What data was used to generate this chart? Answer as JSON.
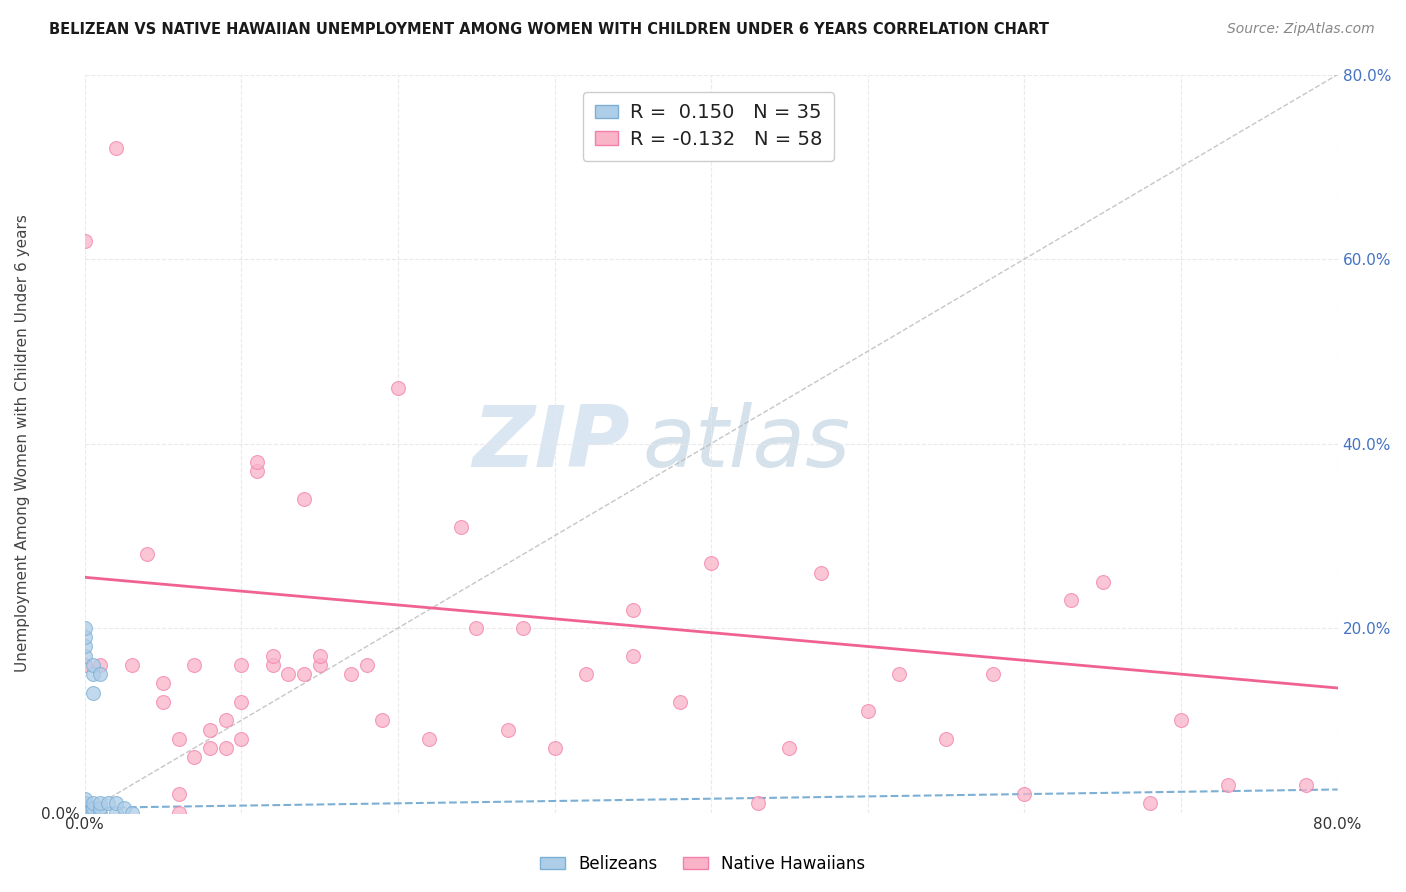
{
  "title": "BELIZEAN VS NATIVE HAWAIIAN UNEMPLOYMENT AMONG WOMEN WITH CHILDREN UNDER 6 YEARS CORRELATION CHART",
  "source": "Source: ZipAtlas.com",
  "ylabel": "Unemployment Among Women with Children Under 6 years",
  "xlim": [
    0.0,
    0.8
  ],
  "ylim": [
    0.0,
    0.8
  ],
  "belizean_R": 0.15,
  "belizean_N": 35,
  "hawaiian_R": -0.132,
  "hawaiian_N": 58,
  "belizean_color": "#aecde8",
  "hawaiian_color": "#f9b4c8",
  "belizean_edge_color": "#7bafd4",
  "hawaiian_edge_color": "#f47fab",
  "belizean_line_color": "#7bafd4",
  "hawaiian_line_color": "#f06292",
  "diagonal_color": "#b8b8b8",
  "belizean_points_x": [
    0.0,
    0.0,
    0.0,
    0.0,
    0.0,
    0.0,
    0.0,
    0.0,
    0.0,
    0.0,
    0.0,
    0.0,
    0.0,
    0.0,
    0.0,
    0.0,
    0.0,
    0.0,
    0.0,
    0.0,
    0.005,
    0.005,
    0.005,
    0.005,
    0.005,
    0.005,
    0.01,
    0.01,
    0.01,
    0.01,
    0.015,
    0.02,
    0.02,
    0.025,
    0.03
  ],
  "belizean_points_y": [
    0.0,
    0.0,
    0.0,
    0.0,
    0.0,
    0.0,
    0.0,
    0.005,
    0.005,
    0.005,
    0.01,
    0.01,
    0.015,
    0.17,
    0.18,
    0.19,
    0.2,
    0.0,
    0.0,
    0.0,
    0.0,
    0.005,
    0.01,
    0.13,
    0.15,
    0.16,
    0.0,
    0.005,
    0.01,
    0.15,
    0.01,
    0.0,
    0.01,
    0.005,
    0.0
  ],
  "hawaiian_points_x": [
    0.0,
    0.0,
    0.01,
    0.02,
    0.03,
    0.04,
    0.05,
    0.05,
    0.06,
    0.06,
    0.06,
    0.07,
    0.07,
    0.08,
    0.08,
    0.09,
    0.09,
    0.1,
    0.1,
    0.1,
    0.11,
    0.11,
    0.12,
    0.12,
    0.13,
    0.14,
    0.14,
    0.15,
    0.15,
    0.17,
    0.18,
    0.19,
    0.2,
    0.22,
    0.24,
    0.25,
    0.27,
    0.28,
    0.3,
    0.32,
    0.35,
    0.35,
    0.38,
    0.4,
    0.43,
    0.45,
    0.47,
    0.5,
    0.52,
    0.55,
    0.58,
    0.6,
    0.63,
    0.65,
    0.68,
    0.7,
    0.73,
    0.78
  ],
  "hawaiian_points_y": [
    0.62,
    0.16,
    0.16,
    0.72,
    0.16,
    0.28,
    0.12,
    0.14,
    0.0,
    0.02,
    0.08,
    0.06,
    0.16,
    0.07,
    0.09,
    0.07,
    0.1,
    0.08,
    0.12,
    0.16,
    0.37,
    0.38,
    0.16,
    0.17,
    0.15,
    0.34,
    0.15,
    0.16,
    0.17,
    0.15,
    0.16,
    0.1,
    0.46,
    0.08,
    0.31,
    0.2,
    0.09,
    0.2,
    0.07,
    0.15,
    0.17,
    0.22,
    0.12,
    0.27,
    0.01,
    0.07,
    0.26,
    0.11,
    0.15,
    0.08,
    0.15,
    0.02,
    0.23,
    0.25,
    0.01,
    0.1,
    0.03,
    0.03
  ],
  "hawaiian_line_start_y": 0.255,
  "hawaiian_line_end_y": 0.135,
  "belizean_line_start_y": 0.005,
  "belizean_line_end_y": 0.025,
  "watermark_zip": "ZIP",
  "watermark_atlas": "atlas",
  "background_color": "#ffffff",
  "grid_color": "#e8e8e8",
  "right_tick_color": "#4472c4",
  "title_color": "#1a1a1a",
  "source_color": "#888888"
}
